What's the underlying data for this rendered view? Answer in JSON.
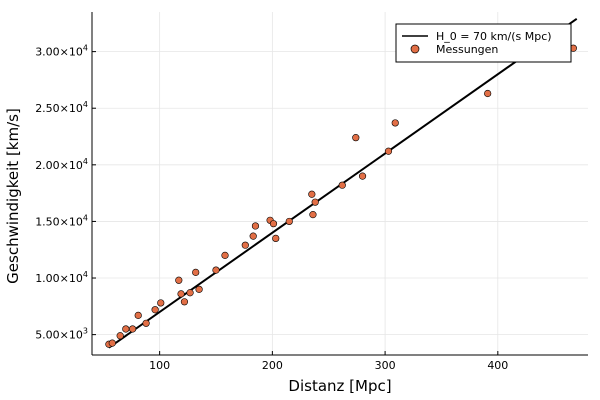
{
  "chart_data": {
    "type": "scatter",
    "title": "",
    "xlabel": "Distanz [Mpc]",
    "ylabel": "Geschwindigkeit [km/s]",
    "xlim": [
      40,
      480
    ],
    "ylim": [
      3200,
      33500
    ],
    "grid": true,
    "legend_position": "top-right",
    "x_ticks": [
      {
        "value": 100,
        "label": "100"
      },
      {
        "value": 200,
        "label": "200"
      },
      {
        "value": 300,
        "label": "300"
      },
      {
        "value": 400,
        "label": "400"
      }
    ],
    "y_ticks": [
      {
        "value": 5000,
        "mantissa": "5.00×10",
        "exp": "3"
      },
      {
        "value": 10000,
        "mantissa": "1.00×10",
        "exp": "4"
      },
      {
        "value": 15000,
        "mantissa": "1.50×10",
        "exp": "4"
      },
      {
        "value": 20000,
        "mantissa": "2.00×10",
        "exp": "4"
      },
      {
        "value": 25000,
        "mantissa": "2.50×10",
        "exp": "4"
      },
      {
        "value": 30000,
        "mantissa": "3.00×10",
        "exp": "4"
      }
    ],
    "series": [
      {
        "name": "H_0 = 70 km/(s Mpc)",
        "kind": "line",
        "color": "#000000",
        "x": [
          55,
          470
        ],
        "y": [
          3850,
          32900
        ]
      },
      {
        "name": "Messungen",
        "kind": "scatter",
        "color": "#e26f46",
        "x": [
          55,
          58,
          65,
          70,
          76,
          81,
          88,
          96,
          101,
          117,
          119,
          122,
          127,
          132,
          135,
          150,
          158,
          176,
          183,
          185,
          198,
          201,
          203,
          215,
          235,
          236,
          238,
          262,
          274,
          280,
          303,
          309,
          391,
          467
        ],
        "y": [
          4150,
          4250,
          4900,
          5500,
          5500,
          6700,
          6000,
          7200,
          7800,
          9800,
          8600,
          7900,
          8700,
          10500,
          9000,
          10700,
          12000,
          12900,
          13700,
          14600,
          15100,
          14800,
          13500,
          15000,
          17400,
          15600,
          16700,
          18200,
          22400,
          19000,
          21200,
          23700,
          26300,
          30300
        ]
      }
    ]
  }
}
